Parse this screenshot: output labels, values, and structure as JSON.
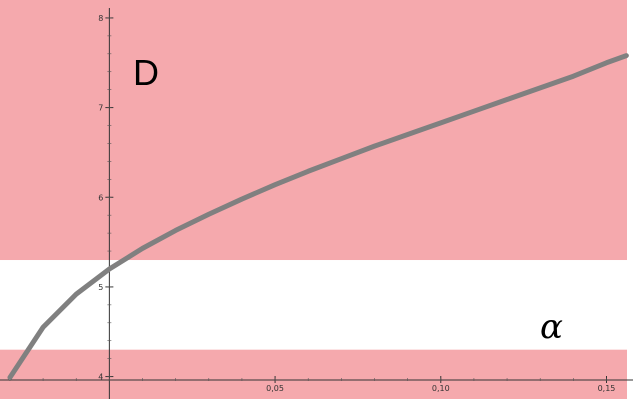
{
  "chart_data": {
    "type": "line",
    "title": "",
    "xlabel": "α",
    "ylabel": "D",
    "xlim": [
      -0.033,
      0.158
    ],
    "ylim": [
      3.75,
      8.2
    ],
    "x_ticks": [
      {
        "value": 0.05,
        "label": "0,05"
      },
      {
        "value": 0.1,
        "label": "0,10"
      },
      {
        "value": 0.15,
        "label": "0,15"
      }
    ],
    "y_ticks": [
      {
        "value": 4,
        "label": "4"
      },
      {
        "value": 5,
        "label": "5"
      },
      {
        "value": 6,
        "label": "6"
      },
      {
        "value": 7,
        "label": "7"
      },
      {
        "value": 8,
        "label": "8"
      }
    ],
    "shaded_bands": [
      {
        "y_from": 3.75,
        "y_to": 4.3,
        "color": "#f5a9ad"
      },
      {
        "y_from": 5.3,
        "y_to": 8.2,
        "color": "#f5a9ad"
      }
    ],
    "series": [
      {
        "color": "#808080",
        "x": [
          -0.03,
          -0.02,
          -0.01,
          0,
          0.01,
          0.02,
          0.03,
          0.04,
          0.05,
          0.06,
          0.07,
          0.08,
          0.09,
          0.1,
          0.11,
          0.12,
          0.13,
          0.14,
          0.15,
          0.156
        ],
        "y": [
          3.99,
          4.55,
          4.92,
          5.2,
          5.43,
          5.63,
          5.81,
          5.98,
          6.14,
          6.29,
          6.43,
          6.57,
          6.7,
          6.83,
          6.96,
          7.09,
          7.22,
          7.35,
          7.5,
          7.58
        ]
      }
    ],
    "grid": false,
    "legend": "none"
  }
}
